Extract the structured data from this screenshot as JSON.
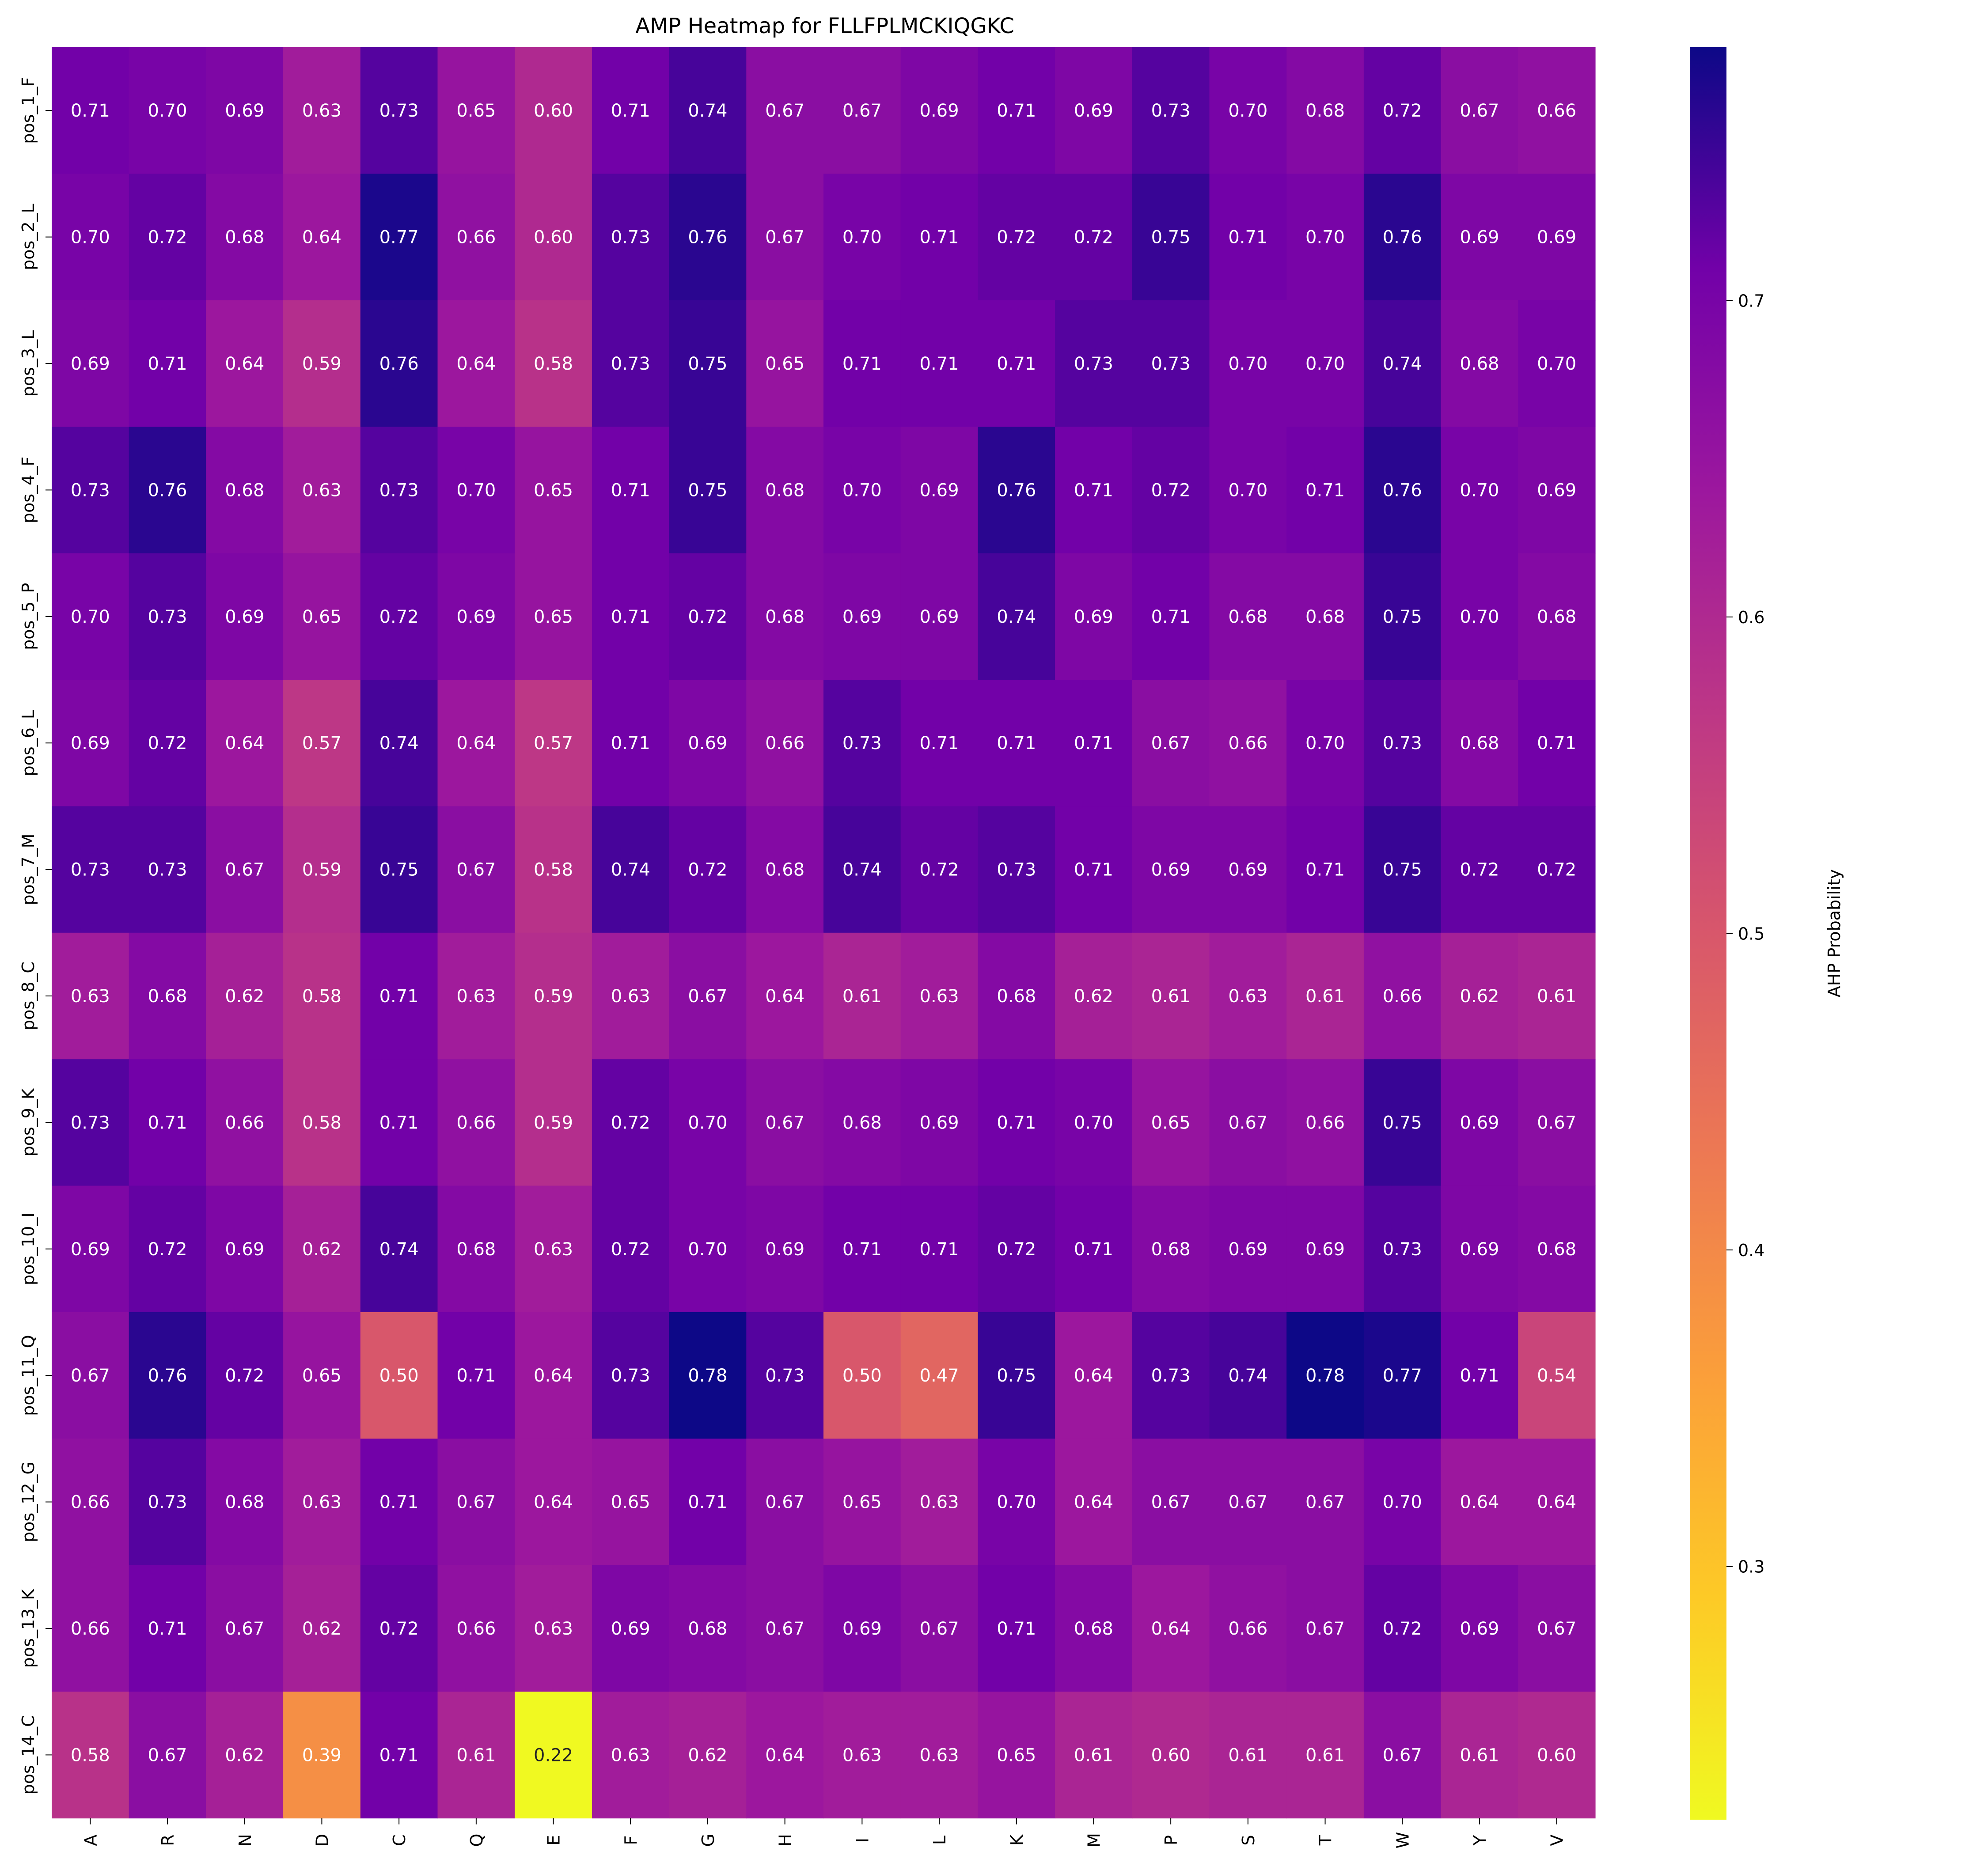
{
  "chart_data": {
    "type": "heatmap",
    "title": "AMP Heatmap for FLLFPLMCKIQGKC",
    "xlabel": "",
    "ylabel": "",
    "colormap": "plasma",
    "colorbar_label": "AHP Probability",
    "colorbar_ticks": [
      0.3,
      0.4,
      0.5,
      0.6,
      0.7
    ],
    "colorbar_range": [
      0.22,
      0.78
    ],
    "x_categories": [
      "A",
      "R",
      "N",
      "D",
      "C",
      "Q",
      "E",
      "F",
      "G",
      "H",
      "I",
      "L",
      "K",
      "M",
      "P",
      "S",
      "T",
      "W",
      "Y",
      "V"
    ],
    "y_categories": [
      "pos_1_F",
      "pos_2_L",
      "pos_3_L",
      "pos_4_F",
      "pos_5_P",
      "pos_6_L",
      "pos_7_M",
      "pos_8_C",
      "pos_9_K",
      "pos_10_I",
      "pos_11_Q",
      "pos_12_G",
      "pos_13_K",
      "pos_14_C"
    ],
    "values": [
      [
        0.71,
        0.7,
        0.69,
        0.63,
        0.73,
        0.65,
        0.6,
        0.71,
        0.74,
        0.67,
        0.67,
        0.69,
        0.71,
        0.69,
        0.73,
        0.7,
        0.68,
        0.72,
        0.67,
        0.66
      ],
      [
        0.7,
        0.72,
        0.68,
        0.64,
        0.77,
        0.66,
        0.6,
        0.73,
        0.76,
        0.67,
        0.7,
        0.71,
        0.72,
        0.72,
        0.75,
        0.71,
        0.7,
        0.76,
        0.69,
        0.69
      ],
      [
        0.69,
        0.71,
        0.64,
        0.59,
        0.76,
        0.64,
        0.58,
        0.73,
        0.75,
        0.65,
        0.71,
        0.71,
        0.71,
        0.73,
        0.73,
        0.7,
        0.7,
        0.74,
        0.68,
        0.7
      ],
      [
        0.73,
        0.76,
        0.68,
        0.63,
        0.73,
        0.7,
        0.65,
        0.71,
        0.75,
        0.68,
        0.7,
        0.69,
        0.76,
        0.71,
        0.72,
        0.7,
        0.71,
        0.76,
        0.7,
        0.69
      ],
      [
        0.7,
        0.73,
        0.69,
        0.65,
        0.72,
        0.69,
        0.65,
        0.71,
        0.72,
        0.68,
        0.69,
        0.69,
        0.74,
        0.69,
        0.71,
        0.68,
        0.68,
        0.75,
        0.7,
        0.68
      ],
      [
        0.69,
        0.72,
        0.64,
        0.57,
        0.74,
        0.64,
        0.57,
        0.71,
        0.69,
        0.66,
        0.73,
        0.71,
        0.71,
        0.71,
        0.67,
        0.66,
        0.7,
        0.73,
        0.68,
        0.71
      ],
      [
        0.73,
        0.73,
        0.67,
        0.59,
        0.75,
        0.67,
        0.58,
        0.74,
        0.72,
        0.68,
        0.74,
        0.72,
        0.73,
        0.71,
        0.69,
        0.69,
        0.71,
        0.75,
        0.72,
        0.72
      ],
      [
        0.63,
        0.68,
        0.62,
        0.58,
        0.71,
        0.63,
        0.59,
        0.63,
        0.67,
        0.64,
        0.61,
        0.63,
        0.68,
        0.62,
        0.61,
        0.63,
        0.61,
        0.66,
        0.62,
        0.61
      ],
      [
        0.73,
        0.71,
        0.66,
        0.58,
        0.71,
        0.66,
        0.59,
        0.72,
        0.7,
        0.67,
        0.68,
        0.69,
        0.71,
        0.7,
        0.65,
        0.67,
        0.66,
        0.75,
        0.69,
        0.67
      ],
      [
        0.69,
        0.72,
        0.69,
        0.62,
        0.74,
        0.68,
        0.63,
        0.72,
        0.7,
        0.69,
        0.71,
        0.71,
        0.72,
        0.71,
        0.68,
        0.69,
        0.69,
        0.73,
        0.69,
        0.68
      ],
      [
        0.67,
        0.76,
        0.72,
        0.65,
        0.5,
        0.71,
        0.64,
        0.73,
        0.78,
        0.73,
        0.5,
        0.47,
        0.75,
        0.64,
        0.73,
        0.74,
        0.78,
        0.77,
        0.71,
        0.54
      ],
      [
        0.66,
        0.73,
        0.68,
        0.63,
        0.71,
        0.67,
        0.64,
        0.65,
        0.71,
        0.67,
        0.65,
        0.63,
        0.7,
        0.64,
        0.67,
        0.67,
        0.67,
        0.7,
        0.64,
        0.64
      ],
      [
        0.66,
        0.71,
        0.67,
        0.62,
        0.72,
        0.66,
        0.63,
        0.69,
        0.68,
        0.67,
        0.69,
        0.67,
        0.71,
        0.68,
        0.64,
        0.66,
        0.67,
        0.72,
        0.69,
        0.67
      ],
      [
        0.58,
        0.67,
        0.62,
        0.39,
        0.71,
        0.61,
        0.22,
        0.63,
        0.62,
        0.64,
        0.63,
        0.63,
        0.65,
        0.61,
        0.6,
        0.61,
        0.61,
        0.67,
        0.61,
        0.6
      ]
    ]
  }
}
